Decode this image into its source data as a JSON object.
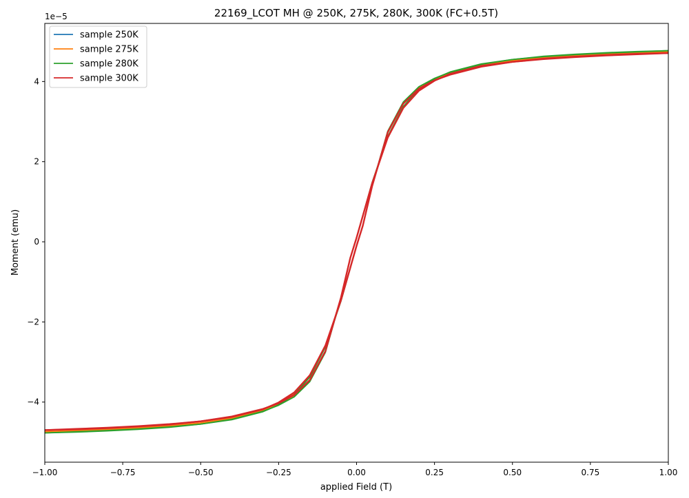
{
  "chart_data": {
    "type": "line",
    "title": "22169_LCOT MH @ 250K, 275K, 280K, 300K (FC+0.5T)",
    "xlabel": "applied Field (T)",
    "ylabel": "Moment (emu)",
    "y_offset_text": "1e−5",
    "xlim": [
      -1.0,
      1.0
    ],
    "ylim": [
      -5.5e-05,
      5.45e-05
    ],
    "x_ticks": [
      -1.0,
      -0.75,
      -0.5,
      -0.25,
      0.0,
      0.25,
      0.5,
      0.75,
      1.0
    ],
    "x_tick_labels": [
      "−1.00",
      "−0.75",
      "−0.50",
      "−0.25",
      "0.00",
      "0.25",
      "0.50",
      "0.75",
      "1.00"
    ],
    "y_ticks": [
      -4e-05,
      -2e-05,
      0,
      2e-05,
      4e-05
    ],
    "y_tick_labels": [
      "−4",
      "−2",
      "0",
      "2",
      "4"
    ],
    "grid": false,
    "legend_position": "top-left",
    "series": [
      {
        "name": "sample 250K",
        "color": "#1f77b4",
        "branch_descending": {
          "x": [
            1.0,
            0.9,
            0.8,
            0.7,
            0.6,
            0.5,
            0.4,
            0.3,
            0.25,
            0.2,
            0.15,
            0.1,
            0.05,
            0.0,
            -0.02,
            -0.05,
            -0.1,
            -0.15,
            -0.2,
            -0.25,
            -0.3,
            -0.4,
            -0.5,
            -0.6,
            -0.7,
            -0.8,
            -0.9,
            -1.0
          ],
          "y": [
            4.76e-05,
            4.73e-05,
            4.7e-05,
            4.66e-05,
            4.61e-05,
            4.54e-05,
            4.43e-05,
            4.23e-05,
            4.06e-05,
            3.8e-05,
            3.37e-05,
            2.62e-05,
            1.47e-05,
            1e-06,
            -4e-06,
            -1.4e-05,
            -2.75e-05,
            -3.48e-05,
            -3.86e-05,
            -4.07e-05,
            -4.22e-05,
            -4.42e-05,
            -4.54e-05,
            -4.62e-05,
            -4.67e-05,
            -4.71e-05,
            -4.74e-05,
            -4.76e-05
          ]
        },
        "branch_ascending": {
          "x": [
            -1.0,
            -0.9,
            -0.8,
            -0.7,
            -0.6,
            -0.5,
            -0.4,
            -0.3,
            -0.25,
            -0.2,
            -0.15,
            -0.1,
            -0.05,
            0.0,
            0.02,
            0.05,
            0.1,
            0.15,
            0.2,
            0.25,
            0.3,
            0.4,
            0.5,
            0.6,
            0.7,
            0.8,
            0.9,
            1.0
          ],
          "y": [
            -4.76e-05,
            -4.73e-05,
            -4.7e-05,
            -4.66e-05,
            -4.61e-05,
            -4.54e-05,
            -4.43e-05,
            -4.23e-05,
            -4.06e-05,
            -3.8e-05,
            -3.37e-05,
            -2.62e-05,
            -1.47e-05,
            -1e-06,
            4e-06,
            1.4e-05,
            2.75e-05,
            3.48e-05,
            3.86e-05,
            4.07e-05,
            4.22e-05,
            4.42e-05,
            4.54e-05,
            4.62e-05,
            4.67e-05,
            4.71e-05,
            4.74e-05,
            4.76e-05
          ]
        }
      },
      {
        "name": "sample 275K",
        "color": "#ff7f0e",
        "branch_descending": {
          "x": [
            1.0,
            0.9,
            0.8,
            0.7,
            0.6,
            0.5,
            0.4,
            0.3,
            0.25,
            0.2,
            0.15,
            0.1,
            0.05,
            0.0,
            -0.02,
            -0.05,
            -0.1,
            -0.15,
            -0.2,
            -0.25,
            -0.3,
            -0.4,
            -0.5,
            -0.6,
            -0.7,
            -0.8,
            -0.9,
            -1.0
          ],
          "y": [
            4.74e-05,
            4.71e-05,
            4.68e-05,
            4.64e-05,
            4.59e-05,
            4.52e-05,
            4.41e-05,
            4.21e-05,
            4.04e-05,
            3.78e-05,
            3.35e-05,
            2.6e-05,
            1.45e-05,
            1e-06,
            -4e-06,
            -1.4e-05,
            -2.73e-05,
            -3.46e-05,
            -3.84e-05,
            -4.05e-05,
            -4.2e-05,
            -4.4e-05,
            -4.52e-05,
            -4.6e-05,
            -4.65e-05,
            -4.69e-05,
            -4.72e-05,
            -4.74e-05
          ]
        },
        "branch_ascending": {
          "x": [
            -1.0,
            -0.9,
            -0.8,
            -0.7,
            -0.6,
            -0.5,
            -0.4,
            -0.3,
            -0.25,
            -0.2,
            -0.15,
            -0.1,
            -0.05,
            0.0,
            0.02,
            0.05,
            0.1,
            0.15,
            0.2,
            0.25,
            0.3,
            0.4,
            0.5,
            0.6,
            0.7,
            0.8,
            0.9,
            1.0
          ],
          "y": [
            -4.74e-05,
            -4.71e-05,
            -4.68e-05,
            -4.64e-05,
            -4.59e-05,
            -4.52e-05,
            -4.41e-05,
            -4.21e-05,
            -4.04e-05,
            -3.78e-05,
            -3.35e-05,
            -2.6e-05,
            -1.45e-05,
            -1e-06,
            4e-06,
            1.4e-05,
            2.73e-05,
            3.46e-05,
            3.84e-05,
            4.05e-05,
            4.2e-05,
            4.4e-05,
            4.52e-05,
            4.6e-05,
            4.65e-05,
            4.69e-05,
            4.72e-05,
            4.74e-05
          ]
        }
      },
      {
        "name": "sample 280K",
        "color": "#2ca02c",
        "branch_descending": {
          "x": [
            1.0,
            0.9,
            0.8,
            0.7,
            0.6,
            0.5,
            0.4,
            0.3,
            0.25,
            0.2,
            0.15,
            0.1,
            0.05,
            0.0,
            -0.02,
            -0.05,
            -0.1,
            -0.15,
            -0.2,
            -0.25,
            -0.3,
            -0.4,
            -0.5,
            -0.6,
            -0.7,
            -0.8,
            -0.9,
            -1.0
          ],
          "y": [
            4.77e-05,
            4.74e-05,
            4.71e-05,
            4.67e-05,
            4.62e-05,
            4.55e-05,
            4.44e-05,
            4.24e-05,
            4.07e-05,
            3.81e-05,
            3.38e-05,
            2.63e-05,
            1.48e-05,
            1e-06,
            -4e-06,
            -1.4e-05,
            -2.76e-05,
            -3.49e-05,
            -3.87e-05,
            -4.08e-05,
            -4.23e-05,
            -4.43e-05,
            -4.55e-05,
            -4.63e-05,
            -4.68e-05,
            -4.72e-05,
            -4.75e-05,
            -4.77e-05
          ]
        },
        "branch_ascending": {
          "x": [
            -1.0,
            -0.9,
            -0.8,
            -0.7,
            -0.6,
            -0.5,
            -0.4,
            -0.3,
            -0.25,
            -0.2,
            -0.15,
            -0.1,
            -0.05,
            0.0,
            0.02,
            0.05,
            0.1,
            0.15,
            0.2,
            0.25,
            0.3,
            0.4,
            0.5,
            0.6,
            0.7,
            0.8,
            0.9,
            1.0
          ],
          "y": [
            -4.77e-05,
            -4.74e-05,
            -4.71e-05,
            -4.67e-05,
            -4.62e-05,
            -4.55e-05,
            -4.44e-05,
            -4.24e-05,
            -4.07e-05,
            -3.81e-05,
            -3.38e-05,
            -2.63e-05,
            -1.48e-05,
            -1e-06,
            4e-06,
            1.4e-05,
            2.76e-05,
            3.49e-05,
            3.87e-05,
            4.08e-05,
            4.23e-05,
            4.43e-05,
            4.55e-05,
            4.63e-05,
            4.68e-05,
            4.72e-05,
            4.75e-05,
            4.77e-05
          ]
        }
      },
      {
        "name": "sample 300K",
        "color": "#d62728",
        "branch_descending": {
          "x": [
            1.0,
            0.9,
            0.8,
            0.7,
            0.6,
            0.5,
            0.4,
            0.3,
            0.25,
            0.2,
            0.15,
            0.1,
            0.05,
            0.0,
            -0.02,
            -0.05,
            -0.1,
            -0.15,
            -0.2,
            -0.25,
            -0.3,
            -0.4,
            -0.5,
            -0.6,
            -0.7,
            -0.8,
            -0.9,
            -1.0
          ],
          "y": [
            4.71e-05,
            4.68e-05,
            4.65e-05,
            4.61e-05,
            4.56e-05,
            4.49e-05,
            4.39e-05,
            4.19e-05,
            4.02e-05,
            3.77e-05,
            3.34e-05,
            2.6e-05,
            1.46e-05,
            1e-06,
            -4e-06,
            -1.39e-05,
            -2.73e-05,
            -3.45e-05,
            -3.82e-05,
            -4.03e-05,
            -4.17e-05,
            -4.36e-05,
            -4.48e-05,
            -4.56e-05,
            -4.61e-05,
            -4.65e-05,
            -4.68e-05,
            -4.7e-05
          ]
        },
        "branch_ascending": {
          "x": [
            -1.0,
            -0.9,
            -0.8,
            -0.7,
            -0.6,
            -0.5,
            -0.4,
            -0.3,
            -0.25,
            -0.2,
            -0.15,
            -0.1,
            -0.05,
            0.0,
            0.02,
            0.05,
            0.1,
            0.15,
            0.2,
            0.25,
            0.3,
            0.4,
            0.5,
            0.6,
            0.7,
            0.8,
            0.9,
            1.0
          ],
          "y": [
            -4.7e-05,
            -4.67e-05,
            -4.64e-05,
            -4.6e-05,
            -4.55e-05,
            -4.48e-05,
            -4.37e-05,
            -4.18e-05,
            -4.01e-05,
            -3.76e-05,
            -3.33e-05,
            -2.59e-05,
            -1.46e-05,
            -1e-06,
            4e-06,
            1.39e-05,
            2.73e-05,
            3.45e-05,
            3.82e-05,
            4.03e-05,
            4.17e-05,
            4.37e-05,
            4.49e-05,
            4.57e-05,
            4.62e-05,
            4.66e-05,
            4.69e-05,
            4.71e-05
          ]
        }
      }
    ]
  }
}
